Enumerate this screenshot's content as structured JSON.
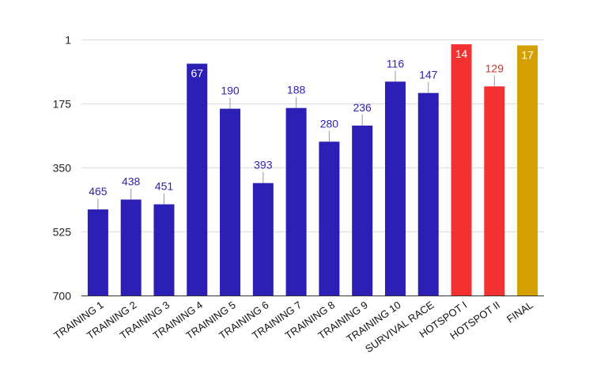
{
  "chart_data": {
    "type": "bar",
    "title": "",
    "xlabel": "",
    "ylabel": "",
    "y_reversed": true,
    "ylim": [
      1,
      700
    ],
    "yticks": [
      1,
      175,
      350,
      525,
      700
    ],
    "grid": true,
    "legend": "none",
    "categories": [
      "TRAINING 1",
      "TRAINING 2",
      "TRAINING 3",
      "TRAINING 4",
      "TRAINING 5",
      "TRAINING 6",
      "TRAINING 7",
      "TRAINING 8",
      "TRAINING 9",
      "TRAINING 10",
      "SURVIVAL RACE",
      "HOTSPOT I",
      "HOTSPOT II",
      "FINAL"
    ],
    "values": [
      465,
      438,
      451,
      67,
      190,
      393,
      188,
      280,
      236,
      116,
      147,
      14,
      129,
      17
    ],
    "bar_colors": [
      "#2b1fb5",
      "#2b1fb5",
      "#2b1fb5",
      "#2b1fb5",
      "#2b1fb5",
      "#2b1fb5",
      "#2b1fb5",
      "#2b1fb5",
      "#2b1fb5",
      "#2b1fb5",
      "#2b1fb5",
      "#f43131",
      "#f43131",
      "#d4a000"
    ],
    "label_colors": [
      "#2b1fb5",
      "#2b1fb5",
      "#2b1fb5",
      "#ffffff",
      "#2b1fb5",
      "#2b1fb5",
      "#2b1fb5",
      "#2b1fb5",
      "#2b1fb5",
      "#2b1fb5",
      "#2b1fb5",
      "#ffffff",
      "#c0392b",
      "#ffffff"
    ],
    "label_inside": [
      false,
      false,
      false,
      true,
      false,
      false,
      false,
      false,
      false,
      false,
      false,
      true,
      false,
      true
    ]
  }
}
